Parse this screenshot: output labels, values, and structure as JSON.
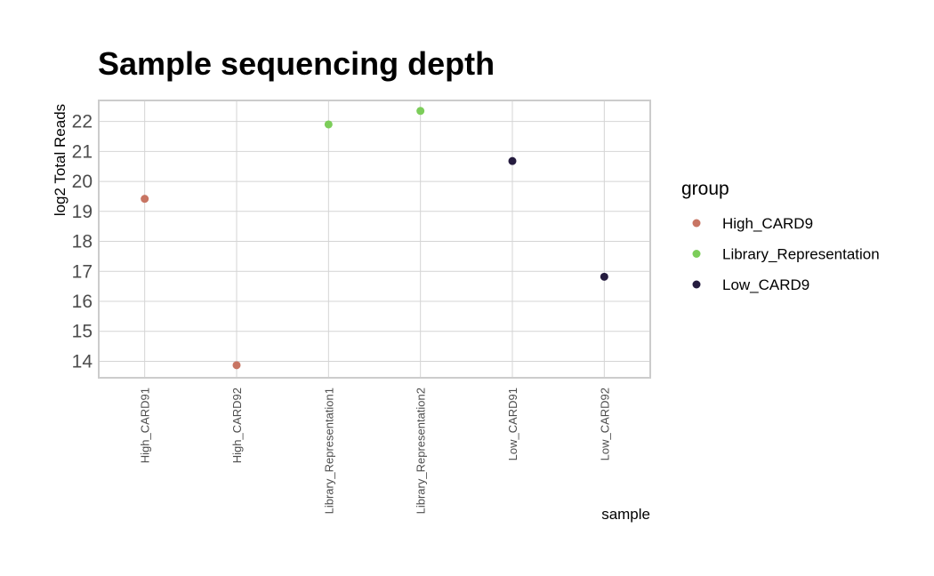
{
  "chart_data": {
    "type": "scatter",
    "title": "Sample sequencing depth",
    "xlabel": "sample",
    "ylabel": "log2 Total Reads",
    "categories": [
      "High_CARD91",
      "High_CARD92",
      "Library_Representation1",
      "Library_Representation2",
      "Low_CARD91",
      "Low_CARD92"
    ],
    "yticks": [
      14,
      15,
      16,
      17,
      18,
      19,
      20,
      21,
      22
    ],
    "ylim": [
      13.45,
      22.7
    ],
    "grid": true,
    "legend": {
      "title": "group",
      "placement": "right",
      "entries": [
        {
          "name": "High_CARD9",
          "color": "#c87563"
        },
        {
          "name": "Library_Representation",
          "color": "#7ccd5a"
        },
        {
          "name": "Low_CARD9",
          "color": "#251c3f"
        }
      ]
    },
    "points": [
      {
        "sample": "High_CARD91",
        "group": "High_CARD9",
        "y": 19.42
      },
      {
        "sample": "High_CARD92",
        "group": "High_CARD9",
        "y": 13.87
      },
      {
        "sample": "Library_Representation1",
        "group": "Library_Representation",
        "y": 21.9
      },
      {
        "sample": "Library_Representation2",
        "group": "Library_Representation",
        "y": 22.35
      },
      {
        "sample": "Low_CARD91",
        "group": "Low_CARD9",
        "y": 20.68
      },
      {
        "sample": "Low_CARD92",
        "group": "Low_CARD9",
        "y": 16.82
      }
    ]
  }
}
